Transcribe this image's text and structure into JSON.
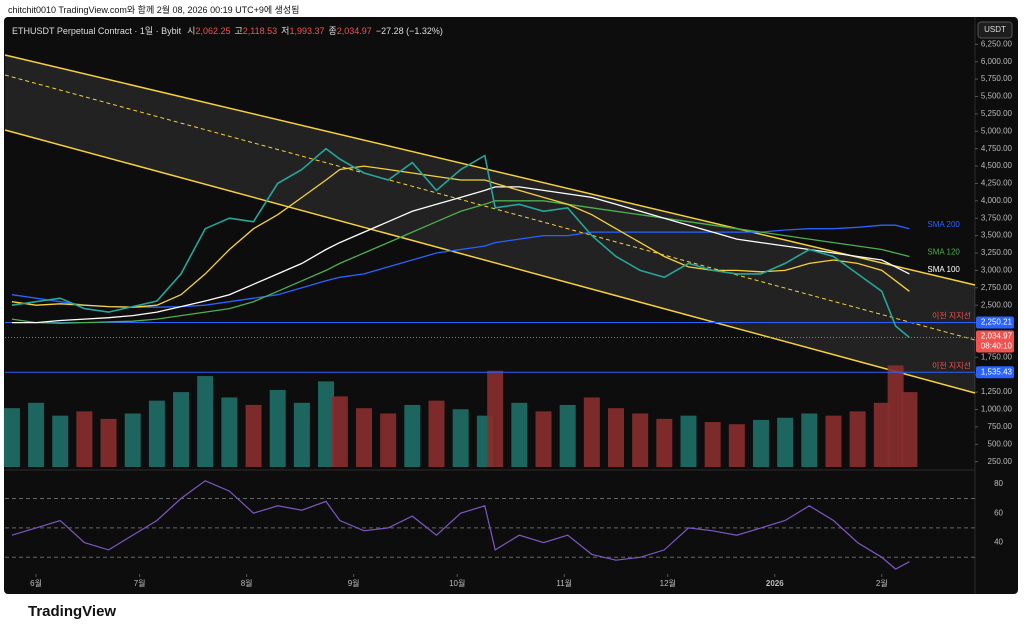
{
  "header": "chitchit0010 TradingView.com와 함께 2월 08, 2026 00:19 UTC+9에 생성됨",
  "brand": "TradingView",
  "chart_data": {
    "type": "line",
    "title": "ETHUSDT Perpetual Contract · 1일 · Bybit",
    "quote": [
      "시",
      "2,062.25",
      "고",
      "2,118.53",
      "저",
      "1,993.37",
      "종",
      "2,034.97",
      "−27.28 (−1.32%)"
    ],
    "currency": "USDT",
    "x": [
      -7,
      0,
      7,
      14,
      21,
      28,
      35,
      42,
      49,
      56,
      63,
      70,
      77,
      84,
      88,
      95,
      102,
      109,
      116,
      123,
      130,
      133,
      140,
      147,
      154,
      161,
      168,
      175,
      182,
      189,
      196,
      203,
      210,
      217,
      224,
      231,
      238,
      245,
      249,
      253
    ],
    "xlim": [
      -9,
      272
    ],
    "xticks": [
      {
        "value": 0,
        "label": "6월"
      },
      {
        "value": 30,
        "label": "7월"
      },
      {
        "value": 61,
        "label": "8월"
      },
      {
        "value": 92,
        "label": "9월"
      },
      {
        "value": 122,
        "label": "10월"
      },
      {
        "value": 153,
        "label": "11월"
      },
      {
        "value": 183,
        "label": "12월"
      },
      {
        "value": 214,
        "label": "2026"
      },
      {
        "value": 245,
        "label": "2월"
      }
    ],
    "series": [
      {
        "color": "#26a69a",
        "values": [
          2500,
          2550,
          2600,
          2450,
          2400,
          2480,
          2560,
          2950,
          3600,
          3750,
          3700,
          4250,
          4450,
          4750,
          4600,
          4400,
          4300,
          4550,
          4150,
          4450,
          4650,
          3900,
          3950,
          3850,
          3900,
          3500,
          3200,
          3000,
          2900,
          3100,
          3000,
          2950,
          2950,
          3100,
          3300,
          3200,
          2950,
          2700,
          2200,
          2035
        ]
      },
      {
        "color": "#f5d13b",
        "values": [
          2550,
          2500,
          2520,
          2500,
          2480,
          2470,
          2500,
          2650,
          2950,
          3300,
          3600,
          3800,
          4050,
          4300,
          4450,
          4500,
          4450,
          4400,
          4350,
          4300,
          4300,
          4250,
          4150,
          4050,
          3950,
          3800,
          3600,
          3400,
          3200,
          3050,
          3000,
          3000,
          2980,
          3000,
          3100,
          3150,
          3100,
          3000,
          2850,
          2700
        ]
      },
      {
        "name": "SMA 100",
        "color": "#ffffff",
        "values": [
          2250,
          2250,
          2280,
          2300,
          2320,
          2350,
          2400,
          2480,
          2560,
          2650,
          2800,
          2950,
          3100,
          3300,
          3400,
          3550,
          3700,
          3850,
          3950,
          4050,
          4150,
          4200,
          4200,
          4150,
          4100,
          4050,
          3950,
          3850,
          3750,
          3650,
          3550,
          3450,
          3400,
          3350,
          3300,
          3250,
          3200,
          3150,
          3050,
          2950
        ]
      },
      {
        "name": "SMA 120",
        "color": "#4caf50",
        "values": [
          2300,
          2250,
          2240,
          2250,
          2260,
          2270,
          2300,
          2350,
          2400,
          2450,
          2550,
          2700,
          2850,
          3000,
          3100,
          3250,
          3400,
          3550,
          3700,
          3850,
          3950,
          4000,
          4000,
          4000,
          3950,
          3900,
          3850,
          3800,
          3750,
          3700,
          3650,
          3600,
          3550,
          3500,
          3450,
          3400,
          3350,
          3300,
          3250,
          3200
        ]
      },
      {
        "name": "SMA 200",
        "color": "#2962ff",
        "values": [
          2650,
          2600,
          2550,
          2500,
          2480,
          2470,
          2470,
          2480,
          2500,
          2550,
          2600,
          2650,
          2750,
          2850,
          2900,
          2950,
          3050,
          3150,
          3250,
          3300,
          3350,
          3400,
          3450,
          3500,
          3500,
          3550,
          3550,
          3550,
          3550,
          3550,
          3550,
          3550,
          3550,
          3580,
          3600,
          3600,
          3620,
          3650,
          3650,
          3600
        ]
      }
    ],
    "ylim": [
      130,
      6600
    ],
    "yticks": [
      {
        "value": 250,
        "label": "250.00"
      },
      {
        "value": 500,
        "label": "500.00"
      },
      {
        "value": 750,
        "label": "750.00"
      },
      {
        "value": 1000,
        "label": "1,000.00"
      },
      {
        "value": 1250,
        "label": "1,250.00"
      },
      {
        "value": 1500,
        "label": "1,500.00"
      },
      {
        "value": 1750,
        "label": "1,750.00"
      },
      {
        "value": 2000,
        "label": "2,000.00"
      },
      {
        "value": 2250,
        "label": "2,250.00"
      },
      {
        "value": 2500,
        "label": "2,500.00"
      },
      {
        "value": 2750,
        "label": "2,750.00"
      },
      {
        "value": 3000,
        "label": "3,000.00"
      },
      {
        "value": 3250,
        "label": "3,250.00"
      },
      {
        "value": 3500,
        "label": "3,500.00"
      },
      {
        "value": 3750,
        "label": "3,750.00"
      },
      {
        "value": 4000,
        "label": "4,000.00"
      },
      {
        "value": 4250,
        "label": "4,250.00"
      },
      {
        "value": 4500,
        "label": "4,500.00"
      },
      {
        "value": 4750,
        "label": "4,750.00"
      },
      {
        "value": 5000,
        "label": "5,000.00"
      },
      {
        "value": 5250,
        "label": "5,250.00"
      },
      {
        "value": 5500,
        "label": "5,500.00"
      },
      {
        "value": 5750,
        "label": "5,750.00"
      },
      {
        "value": 6000,
        "label": "6,000.00"
      },
      {
        "value": 6250,
        "label": "6,250.00"
      }
    ],
    "levels": [
      {
        "name": "이전 지지선",
        "value": 2250.21,
        "label": "2,250.21"
      },
      {
        "name": "이전 지지선",
        "value": 1535.43,
        "label": "1,535.43"
      }
    ],
    "last_price": {
      "value": 2034.97,
      "label": "2,034.97",
      "countdown": "08:40:10"
    },
    "volume": {
      "vlim": [
        0,
        100
      ],
      "values": [
        55,
        60,
        48,
        52,
        45,
        50,
        62,
        70,
        85,
        65,
        58,
        72,
        60,
        80,
        66,
        55,
        50,
        58,
        62,
        54,
        48,
        90,
        60,
        52,
        58,
        65,
        55,
        50,
        45,
        48,
        42,
        40,
        44,
        46,
        50,
        48,
        52,
        60,
        95,
        70
      ]
    },
    "rsi": {
      "ylim": [
        20,
        88
      ],
      "yticks": [
        40,
        60,
        80
      ],
      "levels": [
        30,
        50,
        70
      ],
      "color": "#7e57c2",
      "values": [
        45,
        50,
        55,
        40,
        35,
        45,
        55,
        70,
        82,
        75,
        60,
        65,
        62,
        68,
        55,
        48,
        50,
        58,
        45,
        60,
        65,
        35,
        45,
        40,
        45,
        32,
        28,
        30,
        35,
        50,
        48,
        45,
        50,
        55,
        65,
        55,
        40,
        30,
        22,
        27
      ]
    }
  }
}
